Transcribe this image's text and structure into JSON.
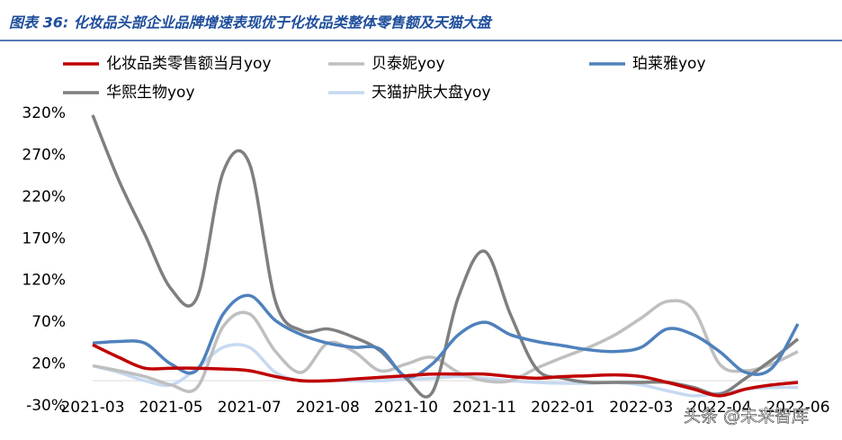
{
  "chart_data": {
    "type": "line",
    "title": "图表 36:  化妆品头部企业品牌增速表现优于化妆品类整体零售额及天猫大盘",
    "watermark": "头条 @未来智库",
    "categories": [
      "2021-03",
      null,
      null,
      "2021-05",
      null,
      null,
      "2021-07",
      null,
      null,
      "2021-08",
      null,
      null,
      "2021-10",
      null,
      null,
      "2021-11",
      null,
      null,
      "2022-01",
      null,
      null,
      "2022-03",
      null,
      null,
      "2022-04",
      null,
      null,
      "2022-06"
    ],
    "series": [
      {
        "name": "化妆品类零售额当月yoy",
        "color": "#c00000",
        "values": [
          43,
          28,
          15,
          15,
          15,
          14,
          12,
          5,
          0,
          0,
          2,
          4,
          6,
          8,
          8,
          8,
          5,
          3,
          5,
          6,
          7,
          5,
          -2,
          -10,
          -18,
          -10,
          -5,
          -2
        ]
      },
      {
        "name": "贝泰妮yoy",
        "color": "#bfbfbf",
        "values": [
          18,
          12,
          5,
          -5,
          -8,
          65,
          80,
          35,
          10,
          45,
          35,
          12,
          20,
          28,
          10,
          0,
          0,
          15,
          28,
          40,
          55,
          75,
          95,
          85,
          20,
          12,
          20,
          35
        ]
      },
      {
        "name": "珀莱雅yoy",
        "color": "#4f81bd",
        "values": [
          45,
          47,
          45,
          20,
          13,
          80,
          102,
          72,
          55,
          45,
          40,
          38,
          5,
          20,
          55,
          70,
          55,
          47,
          42,
          37,
          35,
          40,
          62,
          55,
          35,
          10,
          15,
          68
        ]
      },
      {
        "name": "华熙生物yoy",
        "color": "#7f7f7f",
        "values": [
          318,
          240,
          175,
          110,
          100,
          250,
          260,
          95,
          60,
          62,
          52,
          36,
          3,
          -14,
          100,
          155,
          79,
          14,
          3,
          -2,
          -2,
          -2,
          -2,
          -8,
          -16,
          3,
          25,
          50
        ]
      },
      {
        "name": "天猫护肤大盘yoy",
        "color": "#c6d9f1",
        "values": [
          18,
          10,
          0,
          -5,
          15,
          40,
          40,
          10,
          0,
          0,
          0,
          0,
          2,
          3,
          5,
          3,
          0,
          -2,
          -3,
          -3,
          -2,
          -5,
          -12,
          -18,
          -15,
          -10,
          -8,
          -8
        ]
      }
    ],
    "ylim": [
      -30,
      320
    ],
    "yticks": [
      {
        "value": -30,
        "label": "-30%"
      },
      {
        "value": 20,
        "label": "20%"
      },
      {
        "value": 70,
        "label": "70%"
      },
      {
        "value": 120,
        "label": "120%"
      },
      {
        "value": 170,
        "label": "170%"
      },
      {
        "value": 220,
        "label": "220%"
      },
      {
        "value": 270,
        "label": "270%"
      },
      {
        "value": 320,
        "label": "320%"
      }
    ],
    "grid": false
  }
}
